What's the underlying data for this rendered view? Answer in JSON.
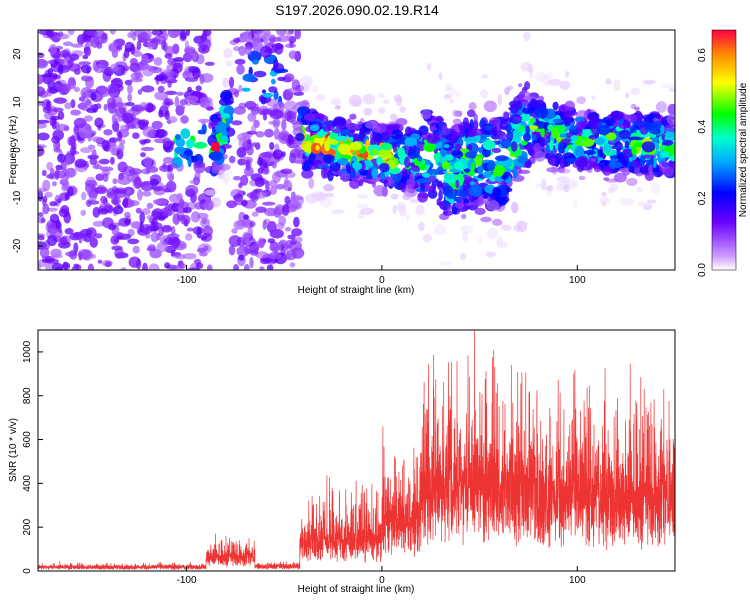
{
  "title": "S197.2026.090.02.19.R14",
  "chart_data": [
    {
      "type": "heatmap",
      "xlabel": "Height of straight line (km)",
      "ylabel": "Frequency (Hz)",
      "xlim": [
        -176,
        150
      ],
      "ylim": [
        -25,
        25
      ],
      "xticks": [
        -100,
        0,
        100
      ],
      "yticks": [
        -20,
        -10,
        0,
        10,
        20
      ],
      "colorbar": {
        "label": "Normalized spectral amplitude",
        "range": [
          0,
          0.67
        ],
        "ticks": [
          0.0,
          0.2,
          0.4,
          0.6
        ]
      },
      "ridge": [
        {
          "x": -90,
          "y": 1
        },
        {
          "x": -84,
          "y": 1
        },
        {
          "x": -72,
          "y": 15
        },
        {
          "x": -50,
          "y": 16
        },
        {
          "x": -40,
          "y": 2
        },
        {
          "x": -20,
          "y": 0
        },
        {
          "x": 0,
          "y": -1
        },
        {
          "x": 15,
          "y": -2
        },
        {
          "x": 25,
          "y": 0
        },
        {
          "x": 35,
          "y": -5
        },
        {
          "x": 45,
          "y": -2
        },
        {
          "x": 60,
          "y": -3
        },
        {
          "x": 75,
          "y": 5
        },
        {
          "x": 100,
          "y": 2
        },
        {
          "x": 150,
          "y": 1
        }
      ],
      "peak": {
        "x": -86,
        "y": 1,
        "value": 0.67
      },
      "grid": false
    },
    {
      "type": "line",
      "xlabel": "Height of straight line (km)",
      "ylabel": "SNR (10 * v/v)",
      "xlim": [
        -176,
        150
      ],
      "ylim": [
        0,
        1100
      ],
      "xticks": [
        -100,
        0,
        100
      ],
      "yticks": [
        0,
        200,
        400,
        600,
        800,
        1000
      ],
      "color": "#ee3333",
      "segments": [
        {
          "x": [
            -176,
            -90
          ],
          "base": 18,
          "amp": 25
        },
        {
          "x": [
            -90,
            -65
          ],
          "base": 60,
          "amp": 120
        },
        {
          "x": [
            -65,
            -42
          ],
          "base": 22,
          "amp": 30
        },
        {
          "x": [
            -42,
            0
          ],
          "base": 120,
          "amp": 350
        },
        {
          "x": [
            0,
            20
          ],
          "base": 200,
          "amp": 500
        },
        {
          "x": [
            20,
            80
          ],
          "base": 350,
          "amp": 800
        },
        {
          "x": [
            80,
            150
          ],
          "base": 300,
          "amp": 700
        }
      ],
      "grid": false
    }
  ]
}
